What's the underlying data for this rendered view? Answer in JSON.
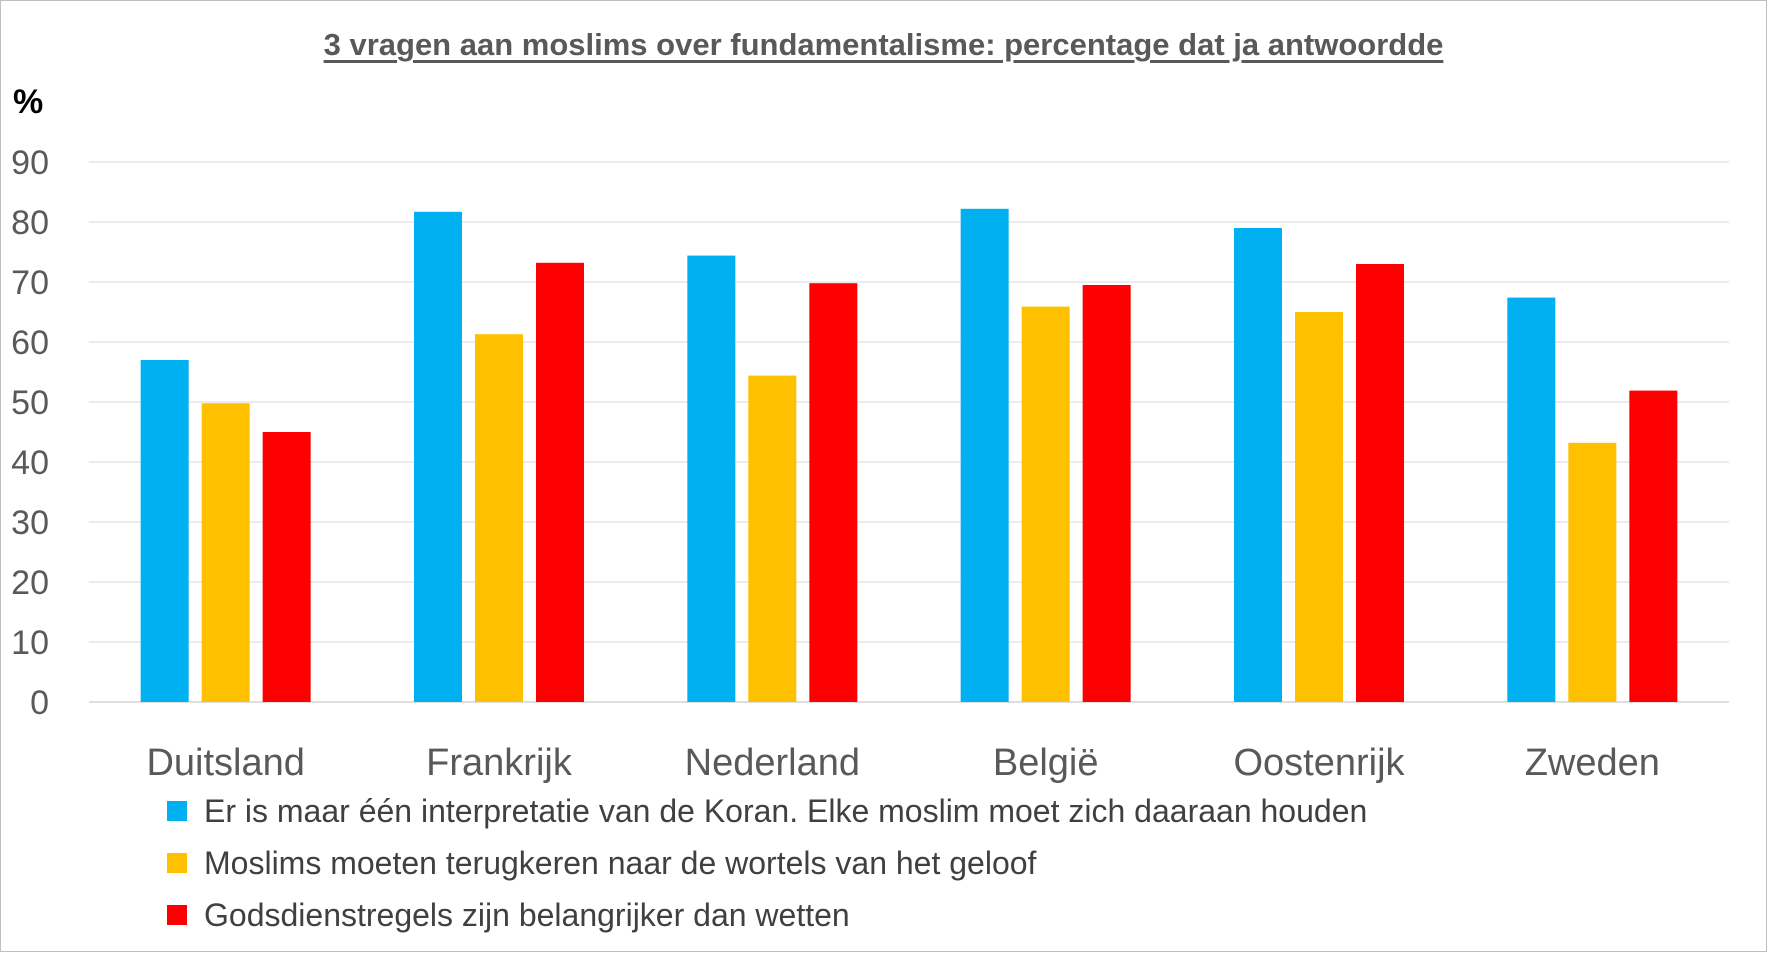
{
  "chart_data": {
    "type": "bar",
    "title": "3 vragen aan moslims over fundamentalisme: percentage dat ja antwoordde",
    "ylabel": "%",
    "xlabel": "",
    "ylim": [
      0,
      90
    ],
    "yticks": [
      0,
      10,
      20,
      30,
      40,
      50,
      60,
      70,
      80,
      90
    ],
    "grid": true,
    "legend_position": "bottom",
    "categories": [
      "Duitsland",
      "Frankrijk",
      "Nederland",
      "België",
      "Oostenrijk",
      "Zweden"
    ],
    "series": [
      {
        "name": "Er is maar één interpretatie van de Koran. Elke moslim moet zich daaraan houden",
        "color": "#00b0f0",
        "values": [
          57,
          81.7,
          74.4,
          82.2,
          79,
          67.4
        ]
      },
      {
        "name": "Moslims moeten terugkeren naar de wortels van het geloof",
        "color": "#ffc000",
        "values": [
          49.8,
          61.3,
          54.4,
          65.9,
          65,
          43.2
        ]
      },
      {
        "name": "Godsdienstregels zijn belangrijker dan wetten",
        "color": "#ff0000",
        "values": [
          45,
          73.2,
          69.8,
          69.5,
          73,
          51.9
        ]
      }
    ]
  }
}
